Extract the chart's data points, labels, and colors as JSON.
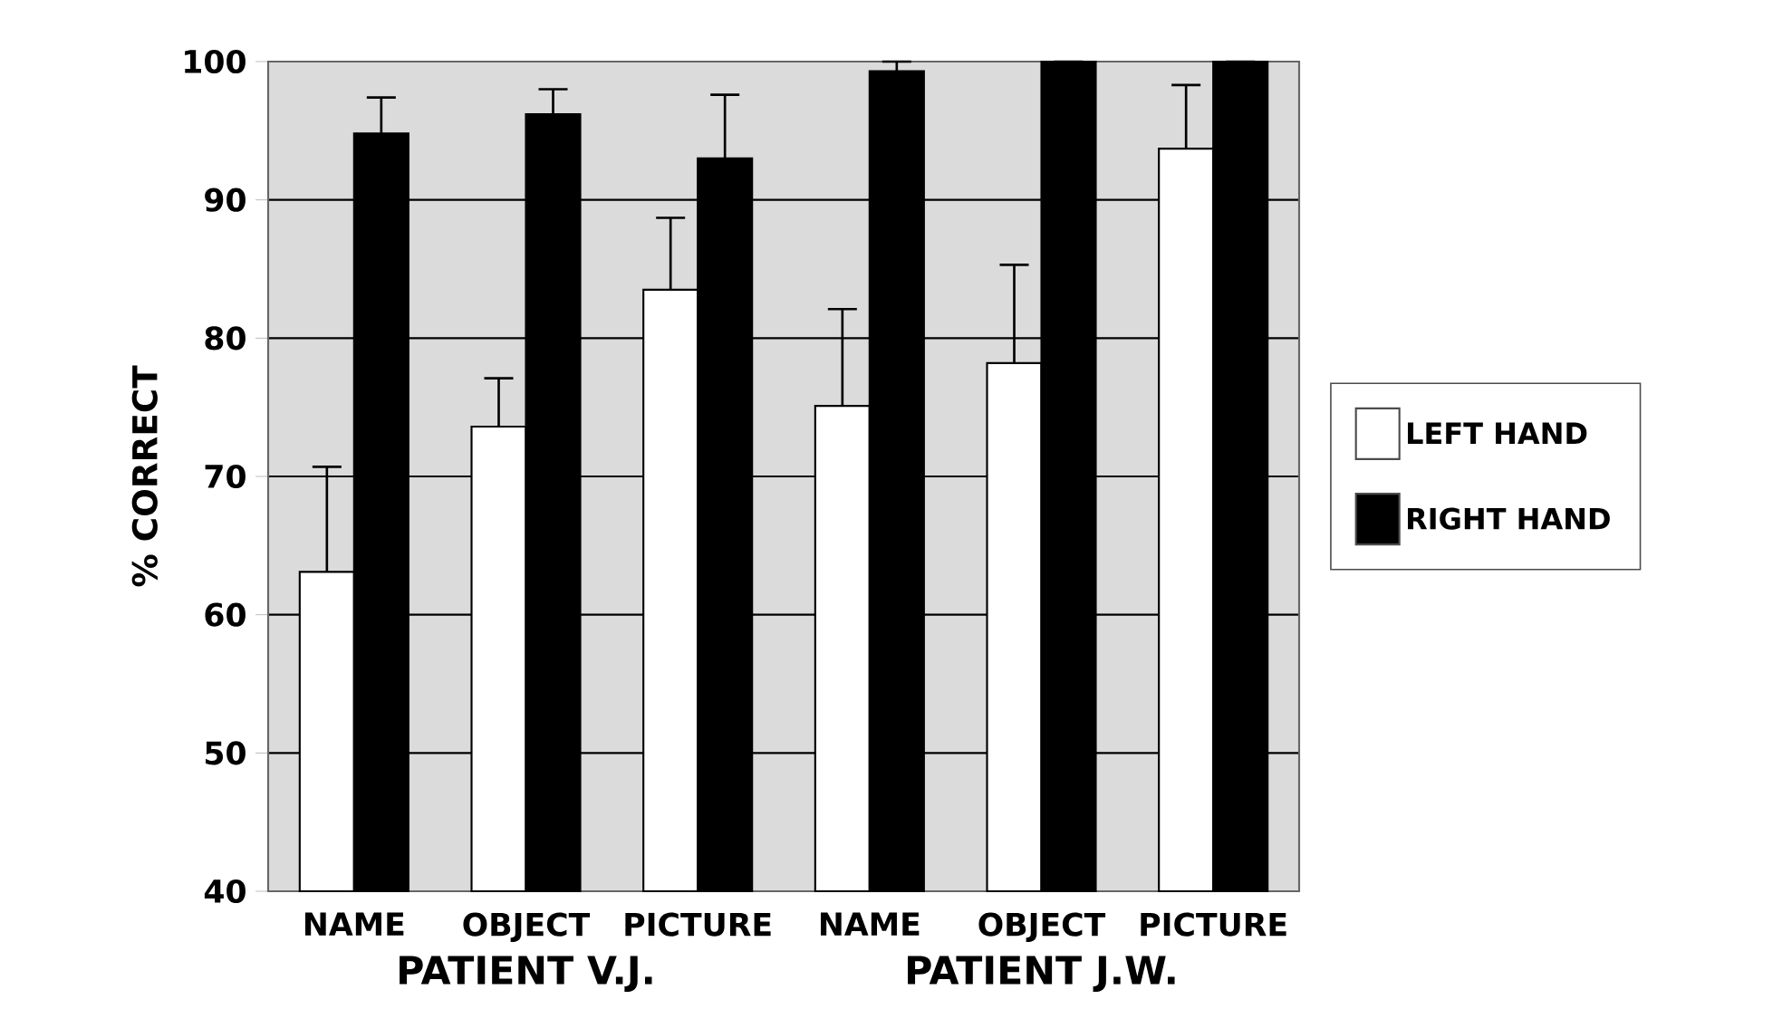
{
  "chart_data": {
    "type": "bar",
    "ylabel": "% CORRECT",
    "categories": [
      "NAME",
      "OBJECT",
      "PICTURE",
      "NAME",
      "OBJECT",
      "PICTURE"
    ],
    "series": [
      {
        "name": "LEFT HAND",
        "color": "#ffffff",
        "values": [
          63.1,
          73.6,
          83.5,
          75.1,
          78.2,
          93.7
        ],
        "errors": [
          7.6,
          3.5,
          5.2,
          7.0,
          7.1,
          4.6
        ]
      },
      {
        "name": "RIGHT HAND",
        "color": "#000000",
        "values": [
          94.8,
          96.2,
          93.0,
          99.3,
          100,
          100
        ],
        "errors": [
          2.6,
          1.8,
          4.6,
          0.7,
          null,
          null
        ]
      }
    ],
    "annotations": [
      "PATIENT V.J.",
      "PATIENT J.W."
    ],
    "ylim": [
      40,
      100
    ],
    "yticks": [
      40,
      50,
      60,
      70,
      80,
      90,
      100
    ],
    "grid": "y",
    "legend": "right"
  }
}
